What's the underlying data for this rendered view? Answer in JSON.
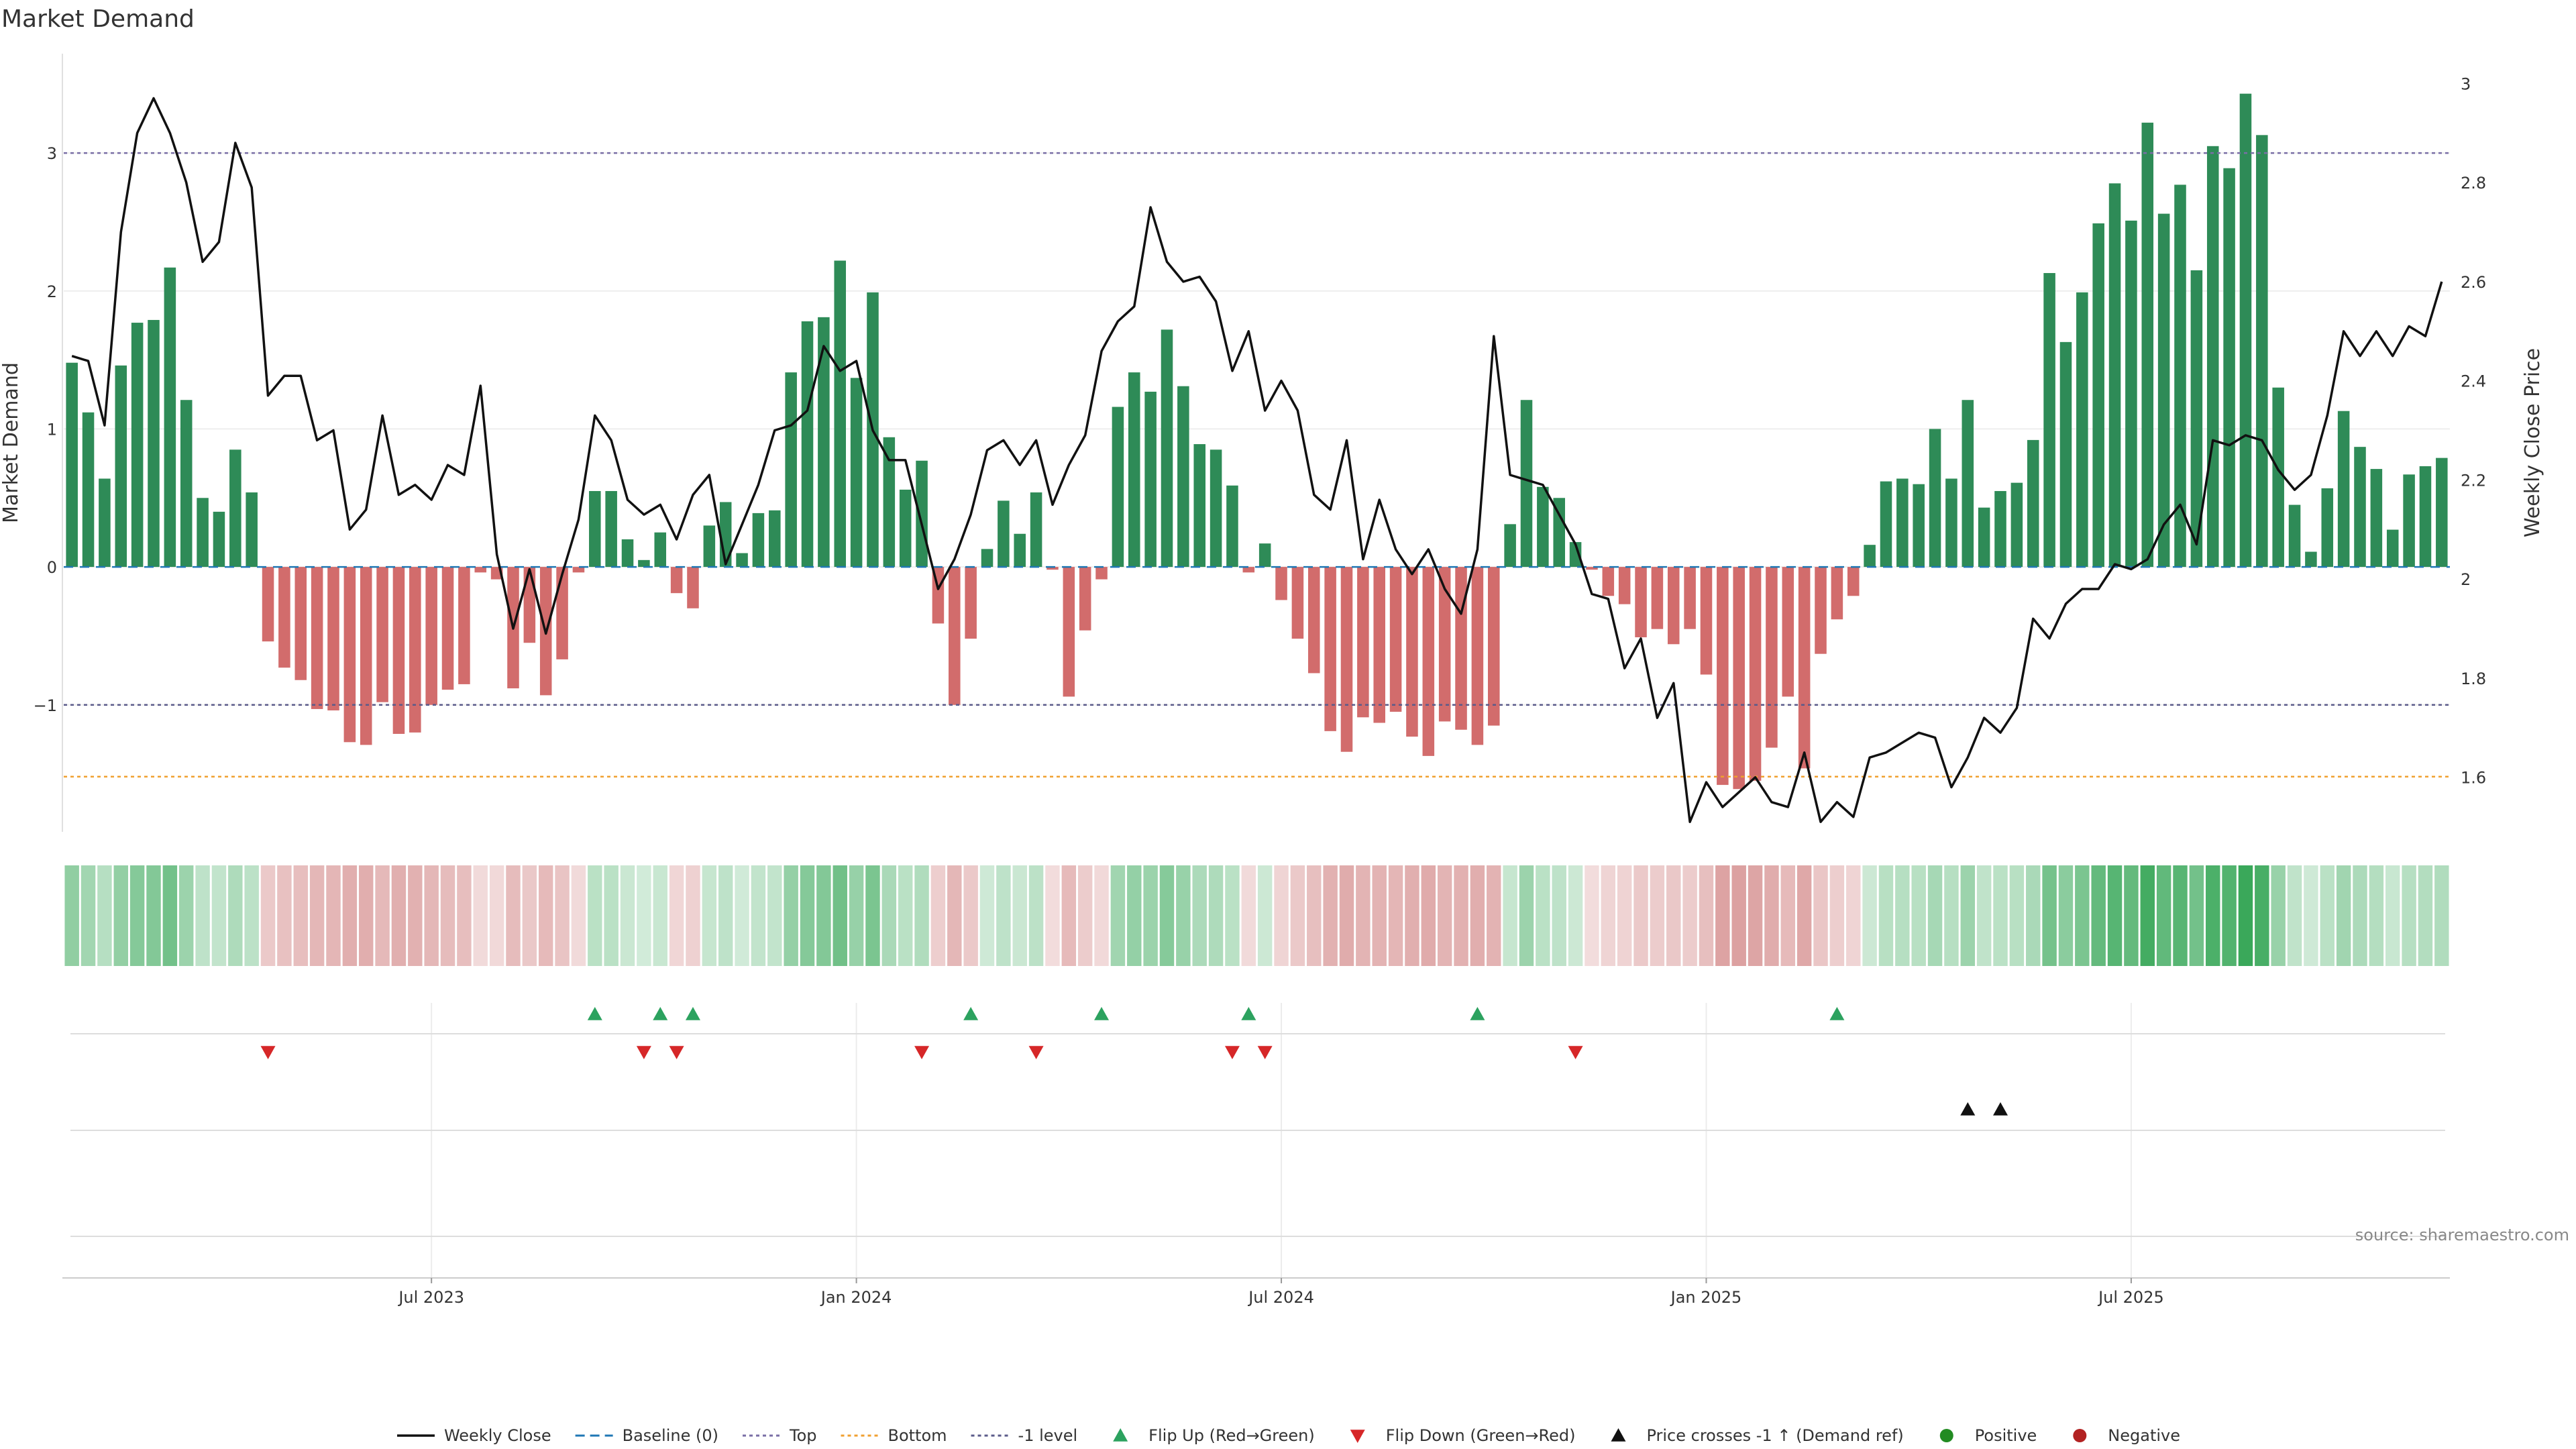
{
  "chart_data": {
    "type": "bar",
    "title": "Market Demand",
    "ylabel": "Market Demand",
    "y2label": "Weekly Close Price",
    "ylim": [
      -1.92,
      3.72
    ],
    "y2lim": [
      1.49,
      3.06
    ],
    "yticks": [
      "−1",
      "0",
      "1",
      "2",
      "3"
    ],
    "y2ticks": [
      "1.6",
      "1.8",
      "2",
      "2.2",
      "2.4",
      "2.6",
      "2.8",
      "3"
    ],
    "xticks": [
      {
        "label": "Jul 2023",
        "week": 22
      },
      {
        "label": "Jan 2024",
        "week": 48
      },
      {
        "label": "Jul 2024",
        "week": 74
      },
      {
        "label": "Jan 2025",
        "week": 100
      },
      {
        "label": "Jul 2025",
        "week": 126
      }
    ],
    "reference_lines": {
      "top": 3,
      "minus_one": -1,
      "bottom": -1.52,
      "baseline": 0
    },
    "demand": [
      1.48,
      1.12,
      0.64,
      1.46,
      1.77,
      1.79,
      2.17,
      1.21,
      0.5,
      0.4,
      0.85,
      0.54,
      -0.54,
      -0.73,
      -0.82,
      -1.03,
      -1.04,
      -1.27,
      -1.29,
      -0.98,
      -1.21,
      -1.2,
      -1.0,
      -0.89,
      -0.85,
      -0.04,
      -0.09,
      -0.88,
      -0.55,
      -0.93,
      -0.67,
      -0.04,
      0.55,
      0.55,
      0.2,
      0.05,
      0.25,
      -0.19,
      -0.3,
      0.3,
      0.47,
      0.1,
      0.39,
      0.41,
      1.41,
      1.78,
      1.81,
      2.22,
      1.37,
      1.99,
      0.94,
      0.56,
      0.77,
      -0.41,
      -1.0,
      -0.52,
      0.13,
      0.48,
      0.24,
      0.54,
      -0.02,
      -0.94,
      -0.46,
      -0.09,
      1.16,
      1.41,
      1.27,
      1.72,
      1.31,
      0.89,
      0.85,
      0.59,
      -0.04,
      0.17,
      -0.24,
      -0.52,
      -0.77,
      -1.19,
      -1.34,
      -1.09,
      -1.13,
      -1.05,
      -1.23,
      -1.37,
      -1.12,
      -1.18,
      -1.29,
      -1.15,
      0.31,
      1.21,
      0.58,
      0.5,
      0.18,
      -0.02,
      -0.21,
      -0.27,
      -0.51,
      -0.45,
      -0.56,
      -0.45,
      -0.78,
      -1.58,
      -1.61,
      -1.55,
      -1.31,
      -0.94,
      -1.46,
      -0.63,
      -0.38,
      -0.21,
      0.16,
      0.62,
      0.64,
      0.6,
      1.0,
      0.64,
      1.21,
      0.43,
      0.55,
      0.61,
      0.92,
      2.13,
      1.63,
      1.99,
      2.49,
      2.78,
      2.51,
      3.22,
      2.56,
      2.77,
      2.15,
      3.05,
      2.89,
      3.43,
      3.13,
      1.3,
      0.45,
      0.11,
      0.57,
      1.13,
      0.87,
      0.71,
      0.27,
      0.67,
      0.73,
      0.79
    ],
    "weekly_close": [
      2.45,
      2.44,
      2.31,
      2.7,
      2.9,
      2.97,
      2.9,
      2.8,
      2.64,
      2.68,
      2.88,
      2.79,
      2.37,
      2.41,
      2.41,
      2.28,
      2.3,
      2.1,
      2.14,
      2.33,
      2.17,
      2.19,
      2.16,
      2.23,
      2.21,
      2.39,
      2.05,
      1.9,
      2.02,
      1.89,
      2.01,
      2.12,
      2.33,
      2.28,
      2.16,
      2.13,
      2.15,
      2.08,
      2.17,
      2.21,
      2.03,
      2.11,
      2.19,
      2.3,
      2.31,
      2.34,
      2.47,
      2.42,
      2.44,
      2.3,
      2.24,
      2.24,
      2.11,
      1.98,
      2.04,
      2.13,
      2.26,
      2.28,
      2.23,
      2.28,
      2.15,
      2.23,
      2.29,
      2.46,
      2.52,
      2.55,
      2.75,
      2.64,
      2.6,
      2.61,
      2.56,
      2.42,
      2.5,
      2.34,
      2.4,
      2.34,
      2.17,
      2.14,
      2.28,
      2.04,
      2.16,
      2.06,
      2.01,
      2.06,
      1.98,
      1.93,
      2.06,
      2.49,
      2.21,
      2.2,
      2.19,
      2.13,
      2.07,
      1.97,
      1.96,
      1.82,
      1.88,
      1.72,
      1.79,
      1.51,
      1.59,
      1.54,
      1.57,
      1.6,
      1.55,
      1.54,
      1.65,
      1.51,
      1.55,
      1.52,
      1.64,
      1.65,
      1.67,
      1.69,
      1.68,
      1.58,
      1.64,
      1.72,
      1.69,
      1.74,
      1.92,
      1.88,
      1.95,
      1.98,
      1.98,
      2.03,
      2.02,
      2.04,
      2.11,
      2.15,
      2.07,
      2.28,
      2.27,
      2.29,
      2.28,
      2.22,
      2.18,
      2.21,
      2.33,
      2.5,
      2.45,
      2.5,
      2.45,
      2.51,
      2.49,
      2.6
    ],
    "flip_up_weeks": [
      32,
      36,
      38,
      55,
      63,
      72,
      86,
      108
    ],
    "flip_down_weeks": [
      12,
      35,
      37,
      52,
      59,
      71,
      73,
      92
    ],
    "price_cross_weeks": [
      116,
      118
    ],
    "source": "source: sharemaestro.com",
    "legend": [
      {
        "label": "Weekly Close",
        "kind": "line",
        "color": "#111111"
      },
      {
        "label": "Baseline (0)",
        "kind": "dash",
        "color": "#1f77b4"
      },
      {
        "label": "Top",
        "kind": "dot",
        "color": "#7a6ea6"
      },
      {
        "label": "Bottom",
        "kind": "dot",
        "color": "#f0a030"
      },
      {
        "label": "-1 level",
        "kind": "dot",
        "color": "#5b5b8a"
      },
      {
        "label": "Flip Up (Red→Green)",
        "kind": "tri-up",
        "color": "#2ca25f"
      },
      {
        "label": "Flip Down (Green→Red)",
        "kind": "tri-down",
        "color": "#d62728"
      },
      {
        "label": "Price crosses -1 ↑ (Demand ref)",
        "kind": "tri-up",
        "color": "#111111"
      },
      {
        "label": "Positive",
        "kind": "circle",
        "color": "#228b22"
      },
      {
        "label": "Negative",
        "kind": "circle",
        "color": "#b22222"
      }
    ],
    "colors": {
      "positive": "#2e8b57",
      "negative": "#cd5c5c",
      "heat_positive": "#3aa85a",
      "heat_negative": "#c46060"
    }
  }
}
